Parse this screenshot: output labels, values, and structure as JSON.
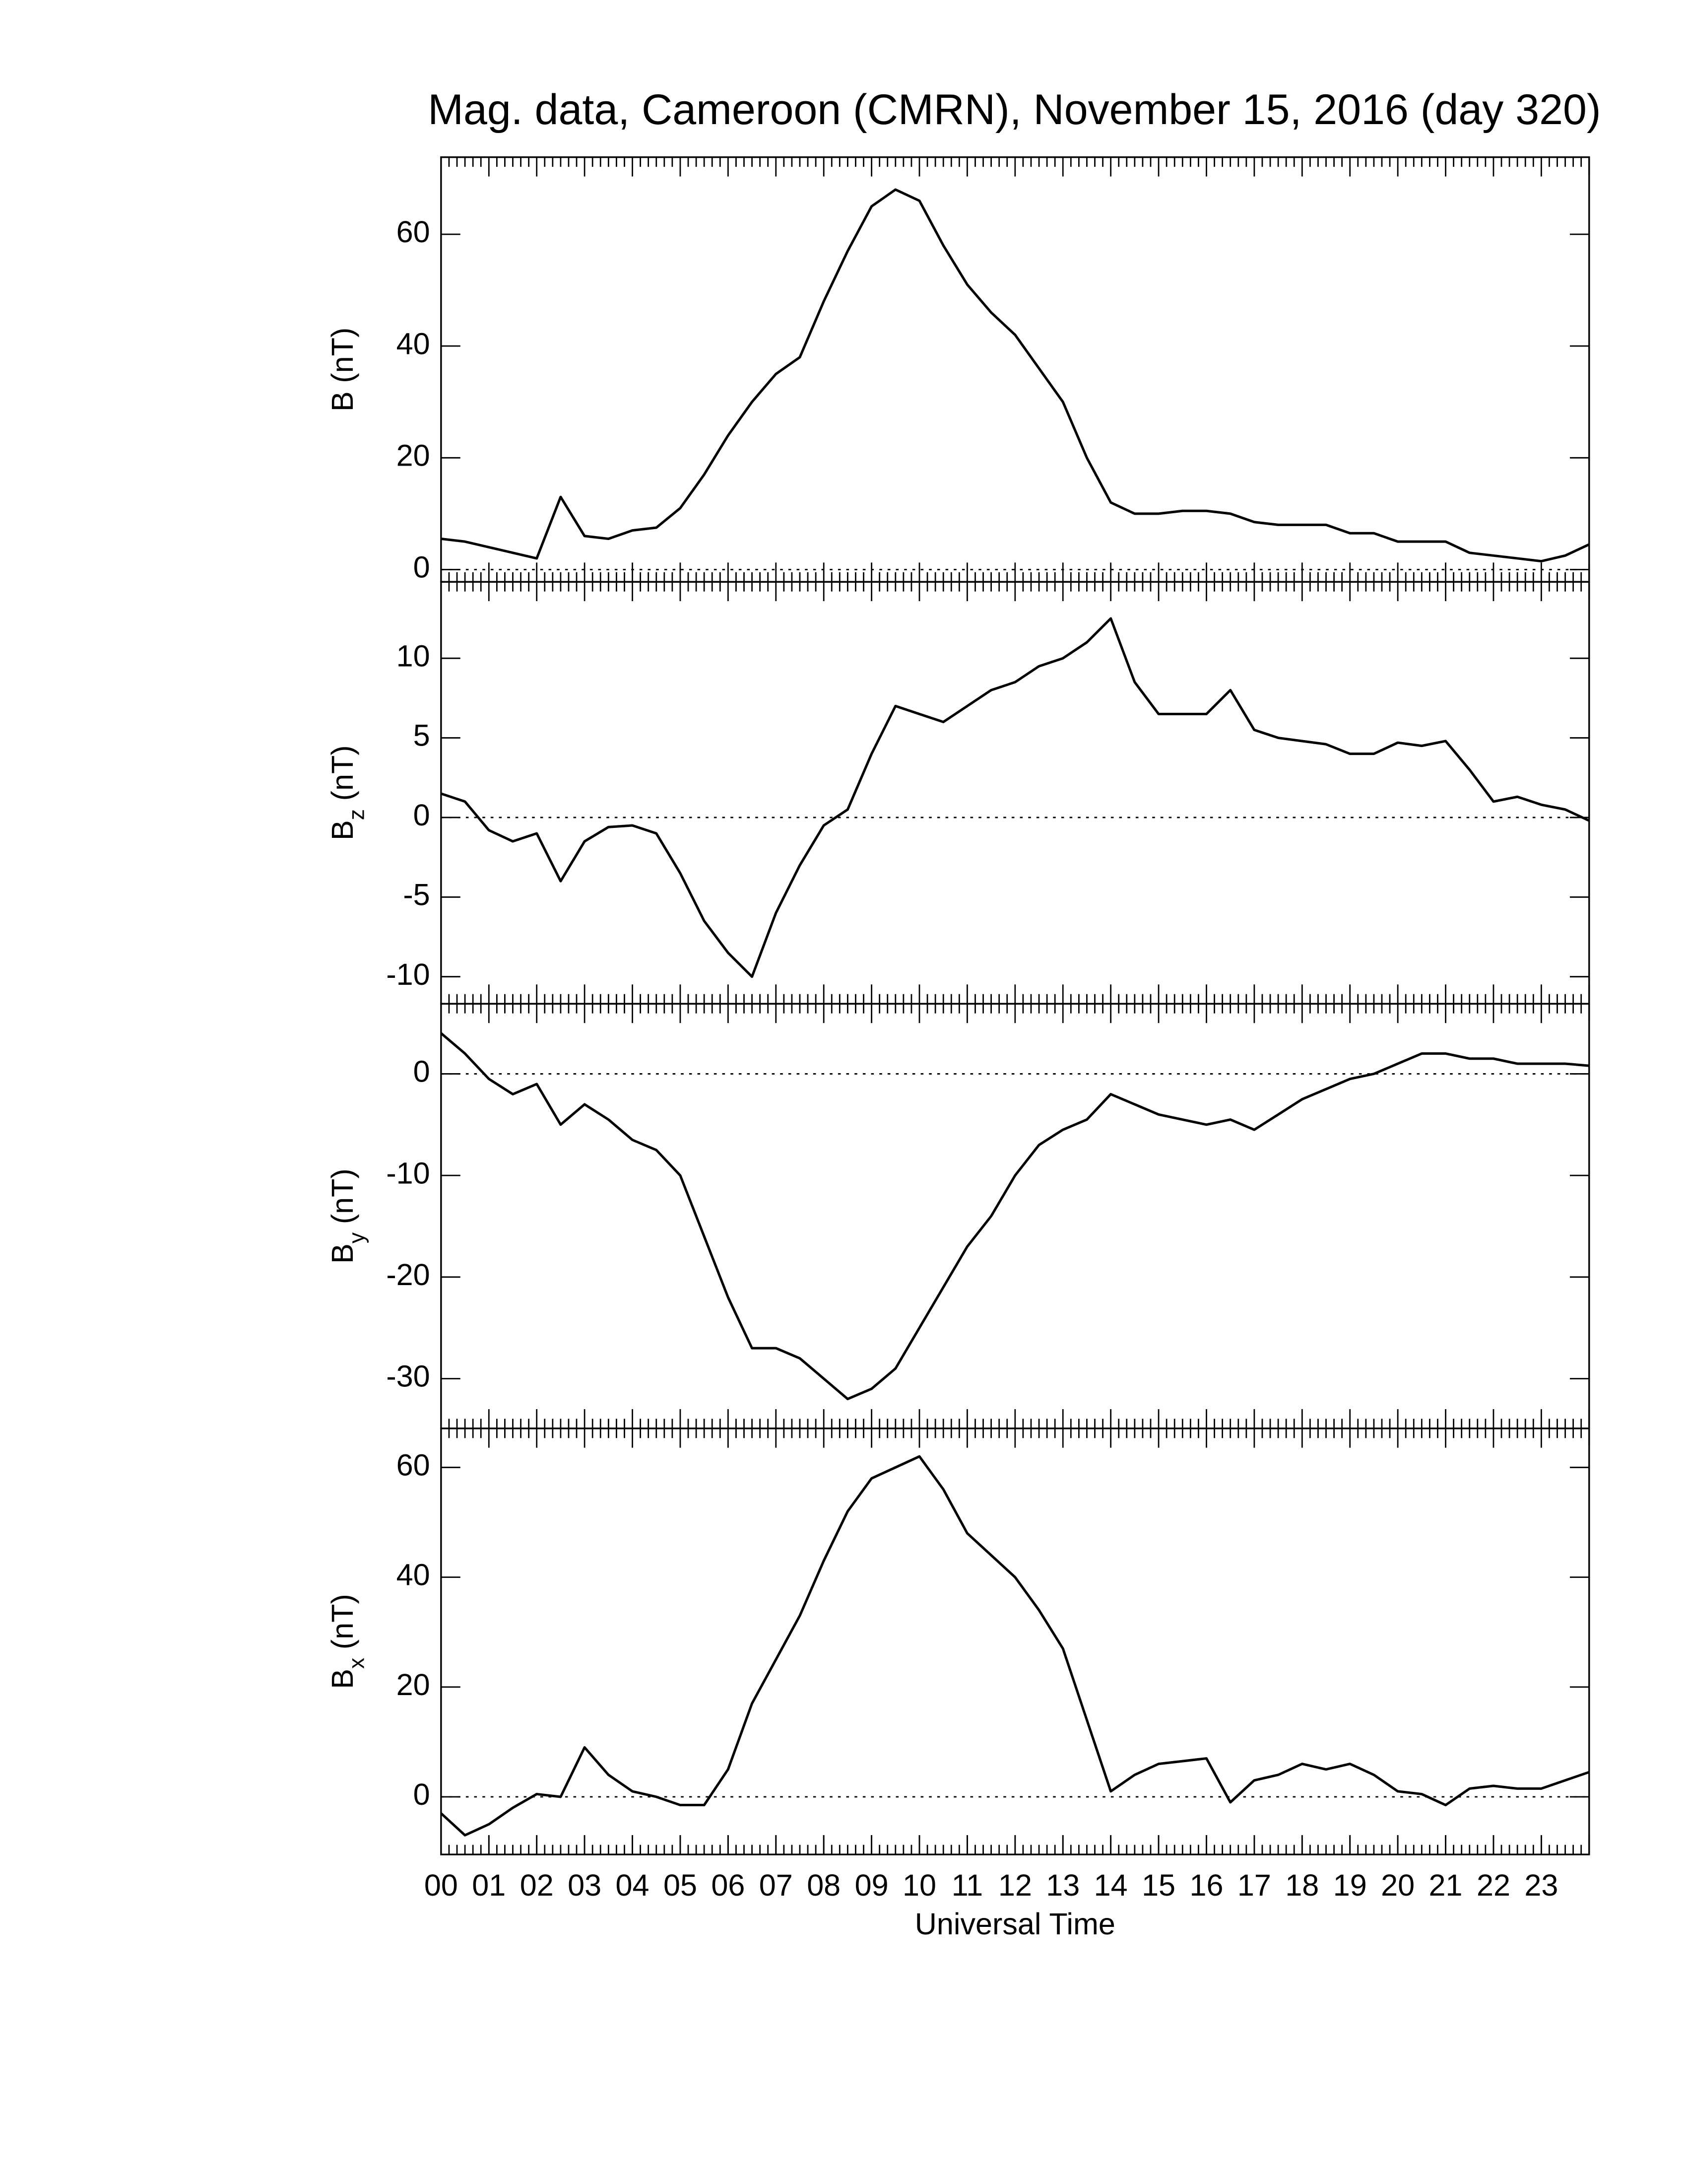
{
  "chart_data": [
    {
      "type": "line",
      "title": "Mag. data, Cameroon (CMRN), November 15, 2016 (day 320)",
      "ylabel": {
        "symbol": "B",
        "unit": "(nT)"
      },
      "x": [
        0,
        0.5,
        1,
        1.5,
        2,
        2.5,
        3,
        3.5,
        4,
        4.5,
        5,
        5.5,
        6,
        6.5,
        7,
        7.5,
        8,
        8.5,
        9,
        9.5,
        10,
        10.5,
        11,
        11.5,
        12,
        12.5,
        13,
        13.5,
        14,
        14.5,
        15,
        15.5,
        16,
        16.5,
        17,
        17.5,
        18,
        18.5,
        19,
        19.5,
        20,
        20.5,
        21,
        21.5,
        22,
        22.5,
        23,
        23.5,
        24
      ],
      "values": [
        5.5,
        5,
        4,
        3,
        2,
        13,
        6,
        5.5,
        7,
        7.5,
        11,
        17,
        24,
        30,
        35,
        38,
        48,
        57,
        65,
        68,
        66,
        58,
        51,
        46,
        42,
        36,
        30,
        20,
        12,
        10,
        10,
        10.5,
        10.5,
        10,
        8.5,
        8,
        8,
        8,
        6.5,
        6.5,
        5,
        5,
        5,
        3,
        2.5,
        2,
        1.5,
        2.5,
        4.5
      ],
      "color": "#000000",
      "xlim": [
        0,
        24
      ],
      "ylim": [
        -2.2,
        73.8
      ],
      "yticks": [
        0,
        20,
        40,
        60
      ],
      "reference_line": 0
    },
    {
      "type": "line",
      "ylabel": {
        "symbol": "B",
        "subscript": "z",
        "unit": "(nT)"
      },
      "x": [
        0,
        0.5,
        1,
        1.5,
        2,
        2.5,
        3,
        3.5,
        4,
        4.5,
        5,
        5.5,
        6,
        6.5,
        7,
        7.5,
        8,
        8.5,
        9,
        9.5,
        10,
        10.5,
        11,
        11.5,
        12,
        12.5,
        13,
        13.5,
        14,
        14.5,
        15,
        15.5,
        16,
        16.5,
        17,
        17.5,
        18,
        18.5,
        19,
        19.5,
        20,
        20.5,
        21,
        21.5,
        22,
        22.5,
        23,
        23.5,
        24
      ],
      "values": [
        1.5,
        1,
        -0.8,
        -1.5,
        -1,
        -4,
        -1.5,
        -0.6,
        -0.5,
        -1,
        -3.5,
        -6.5,
        -8.5,
        -10,
        -6,
        -3,
        -0.5,
        0.5,
        4,
        7,
        6.5,
        6,
        7,
        8,
        8.5,
        9.5,
        10,
        11,
        12.5,
        8.5,
        6.5,
        6.5,
        6.5,
        8,
        5.5,
        5,
        4.8,
        4.6,
        4,
        4,
        4.7,
        4.5,
        4.8,
        3,
        1,
        1.3,
        0.8,
        0.5,
        -0.2
      ],
      "color": "#000000",
      "xlim": [
        0,
        24
      ],
      "ylim": [
        -11.7,
        14.8
      ],
      "yticks": [
        -10,
        -5,
        0,
        5,
        10
      ],
      "reference_line": 0
    },
    {
      "type": "line",
      "ylabel": {
        "symbol": "B",
        "subscript": "y",
        "unit": "(nT)"
      },
      "x": [
        0,
        0.5,
        1,
        1.5,
        2,
        2.5,
        3,
        3.5,
        4,
        4.5,
        5,
        5.5,
        6,
        6.5,
        7,
        7.5,
        8,
        8.5,
        9,
        9.5,
        10,
        10.5,
        11,
        11.5,
        12,
        12.5,
        13,
        13.5,
        14,
        14.5,
        15,
        15.5,
        16,
        16.5,
        17,
        17.5,
        18,
        18.5,
        19,
        19.5,
        20,
        20.5,
        21,
        21.5,
        22,
        22.5,
        23,
        23.5,
        24
      ],
      "values": [
        4,
        2,
        -0.5,
        -2,
        -1,
        -5,
        -3,
        -4.5,
        -6.5,
        -7.5,
        -10,
        -16,
        -22,
        -27,
        -27,
        -28,
        -30,
        -32,
        -31,
        -29,
        -25,
        -21,
        -17,
        -14,
        -10,
        -7,
        -5.5,
        -4.5,
        -2,
        -3,
        -4,
        -4.5,
        -5,
        -4.5,
        -5.5,
        -4,
        -2.5,
        -1.5,
        -0.5,
        0,
        1,
        2,
        2,
        1.5,
        1.5,
        1,
        1,
        1,
        0.8
      ],
      "color": "#000000",
      "xlim": [
        0,
        24
      ],
      "ylim": [
        -34.9,
        6.9
      ],
      "yticks": [
        -30,
        -20,
        -10,
        0
      ],
      "reference_line": 0
    },
    {
      "type": "line",
      "xlabel": "Universal Time",
      "ylabel": {
        "symbol": "B",
        "subscript": "x",
        "unit": "(nT)"
      },
      "x": [
        0,
        0.5,
        1,
        1.5,
        2,
        2.5,
        3,
        3.5,
        4,
        4.5,
        5,
        5.5,
        6,
        6.5,
        7,
        7.5,
        8,
        8.5,
        9,
        9.5,
        10,
        10.5,
        11,
        11.5,
        12,
        12.5,
        13,
        13.5,
        14,
        14.5,
        15,
        15.5,
        16,
        16.5,
        17,
        17.5,
        18,
        18.5,
        19,
        19.5,
        20,
        20.5,
        21,
        21.5,
        22,
        22.5,
        23,
        23.5,
        24
      ],
      "values": [
        -3,
        -7,
        -5,
        -2,
        0.5,
        0,
        9,
        4,
        1,
        0,
        -1.5,
        -1.5,
        5,
        17,
        25,
        33,
        43,
        52,
        58,
        60,
        62,
        56,
        48,
        44,
        40,
        34,
        27,
        14,
        1,
        4,
        6,
        6.5,
        7,
        -1,
        3,
        4,
        6,
        5,
        6,
        4,
        1,
        0.5,
        -1.5,
        1.5,
        2,
        1.5,
        1.5,
        3,
        4.5
      ],
      "color": "#000000",
      "xlim": [
        0,
        24
      ],
      "ylim": [
        -10.5,
        67.1
      ],
      "yticks": [
        0,
        20,
        40,
        60
      ],
      "reference_line": 0,
      "xticks": [
        {
          "value": 0,
          "label": "00"
        },
        {
          "value": 1,
          "label": "01"
        },
        {
          "value": 2,
          "label": "02"
        },
        {
          "value": 3,
          "label": "03"
        },
        {
          "value": 4,
          "label": "04"
        },
        {
          "value": 5,
          "label": "05"
        },
        {
          "value": 6,
          "label": "06"
        },
        {
          "value": 7,
          "label": "07"
        },
        {
          "value": 8,
          "label": "08"
        },
        {
          "value": 9,
          "label": "09"
        },
        {
          "value": 10,
          "label": "10"
        },
        {
          "value": 11,
          "label": "11"
        },
        {
          "value": 12,
          "label": "12"
        },
        {
          "value": 13,
          "label": "13"
        },
        {
          "value": 14,
          "label": "14"
        },
        {
          "value": 15,
          "label": "15"
        },
        {
          "value": 16,
          "label": "16"
        },
        {
          "value": 17,
          "label": "17"
        },
        {
          "value": 18,
          "label": "18"
        },
        {
          "value": 19,
          "label": "19"
        },
        {
          "value": 20,
          "label": "20"
        },
        {
          "value": 21,
          "label": "21"
        },
        {
          "value": 22,
          "label": "22"
        },
        {
          "value": 23,
          "label": "23"
        }
      ]
    }
  ]
}
